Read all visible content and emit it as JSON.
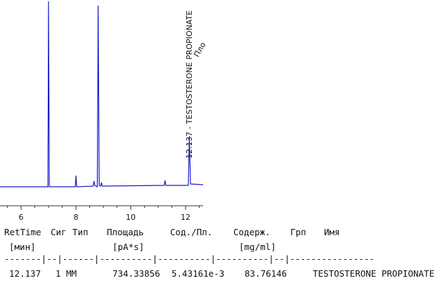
{
  "chart_data": {
    "type": "line",
    "series": [
      {
        "color": "#1a1acd",
        "x": [
          5.23,
          6.98,
          7.0,
          7.03,
          7.98,
          8.0,
          8.03,
          8.63,
          8.66,
          8.69,
          8.78,
          8.81,
          8.85,
          8.9,
          8.93,
          8.96,
          11.22,
          11.25,
          11.28,
          12.1,
          12.137,
          12.18,
          12.64
        ],
        "values": [
          0,
          0,
          264,
          0,
          0,
          16,
          0,
          1,
          8,
          2,
          0,
          258,
          2,
          1,
          6,
          1,
          2,
          9,
          2,
          2,
          72,
          4,
          3
        ]
      }
    ],
    "xlim": [
      5.23,
      12.64
    ],
    "ylim": [
      0,
      264
    ],
    "xticks": [
      6,
      8,
      10,
      12
    ],
    "peak_label": "12.137 - TESTOSTERONE PROPIONATE",
    "annotation": "Пло"
  },
  "table": {
    "header": [
      "RetTime",
      "Сиг",
      "Тип",
      "Площадь",
      "Сод./Пл.",
      "Содерж.",
      "Грп",
      "Имя"
    ],
    "units": [
      "[мин]",
      "[pA*s]",
      "[mg/ml]"
    ],
    "separator": "-------|--|------|----------|----------|----------|--|----------------",
    "rows": [
      [
        "12.137",
        "1",
        "MM",
        "734.33856",
        "5.43161e-3",
        "83.76146",
        "TESTOSTERONE PROPIONATE"
      ]
    ]
  }
}
